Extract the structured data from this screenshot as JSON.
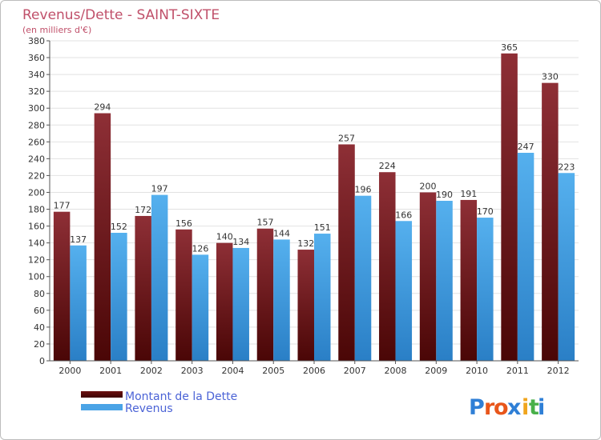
{
  "chart_data": {
    "type": "bar",
    "title": "Revenus/Dette - SAINT-SIXTE",
    "subtitle": "(en milliers d'€)",
    "categories": [
      "2000",
      "2001",
      "2002",
      "2003",
      "2004",
      "2005",
      "2006",
      "2007",
      "2008",
      "2009",
      "2010",
      "2011",
      "2012"
    ],
    "series": [
      {
        "name": "Montant de la Dette",
        "color": "#8b2a30",
        "values": [
          177,
          294,
          172,
          156,
          140,
          157,
          132,
          257,
          224,
          200,
          191,
          365,
          330
        ]
      },
      {
        "name": "Revenus",
        "color": "#4aa3e6",
        "values": [
          137,
          152,
          197,
          126,
          134,
          144,
          151,
          196,
          166,
          190,
          170,
          247,
          223
        ]
      }
    ],
    "ylim": [
      0,
      380
    ],
    "ytick_step": 20,
    "grid": true,
    "legend_position": "bottom-left"
  },
  "logo": {
    "text": "Proxiti",
    "letters": [
      "P",
      "r",
      "o",
      "x",
      "i",
      "t",
      "i"
    ],
    "colors": [
      "#2f7fd6",
      "#e8561b",
      "#e8561b",
      "#2f7fd6",
      "#f0a51e",
      "#49b04a",
      "#2f7fd6"
    ]
  }
}
